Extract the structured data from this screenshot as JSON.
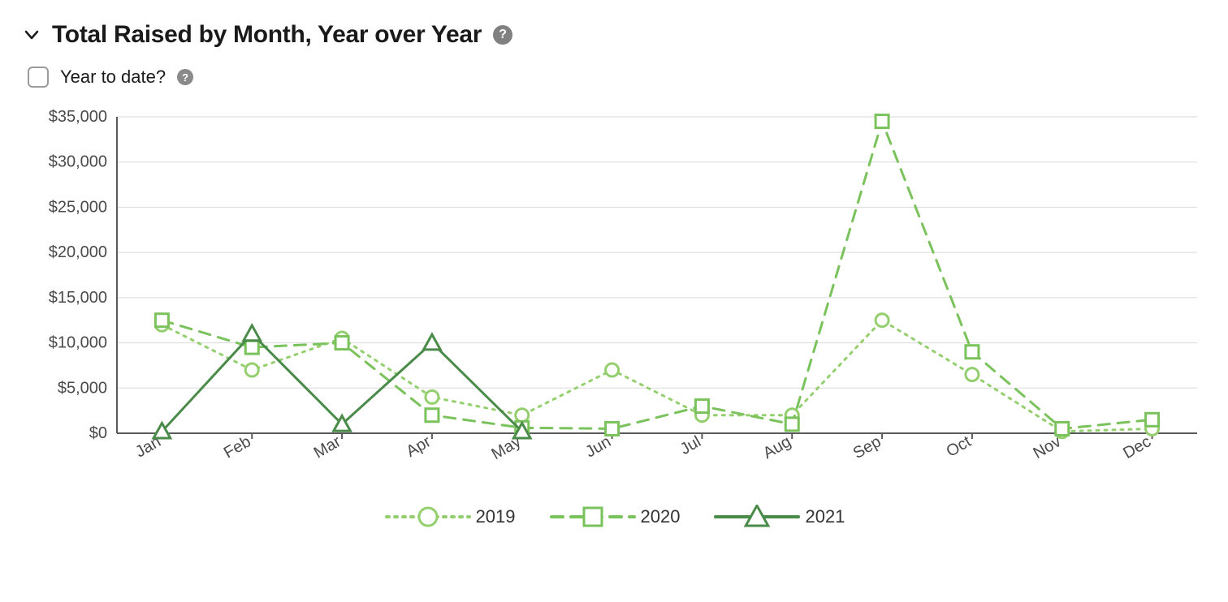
{
  "header": {
    "title": "Total Raised by Month, Year over Year"
  },
  "options": {
    "ytd_label": "Year to date?",
    "ytd_checked": false
  },
  "chart": {
    "type": "line",
    "background_color": "#ffffff",
    "grid_color": "#d9d9d9",
    "axis_color": "#5a5a5a",
    "font_size_ticks": 20,
    "font_size_legend": 22,
    "x": {
      "categories": [
        "Jan",
        "Feb",
        "Mar",
        "Apr",
        "May",
        "Jun",
        "Jul",
        "Aug",
        "Sep",
        "Oct",
        "Nov",
        "Dec"
      ]
    },
    "y": {
      "min": 0,
      "max": 35000,
      "tick_step": 5000,
      "tick_labels": [
        "$0",
        "$5,000",
        "$10,000",
        "$15,000",
        "$20,000",
        "$25,000",
        "$30,000",
        "$35,000"
      ]
    },
    "series": [
      {
        "name": "2019",
        "color": "#94cf6e",
        "line_width": 3,
        "dash": "dotted",
        "marker": "circle",
        "marker_size": 8,
        "values": [
          12000,
          7000,
          10500,
          4000,
          2000,
          7000,
          2000,
          2000,
          12500,
          6500,
          200,
          500
        ]
      },
      {
        "name": "2020",
        "color": "#7ac25b",
        "line_width": 3,
        "dash": "dashed",
        "marker": "square",
        "marker_size": 8,
        "values": [
          12500,
          9500,
          10000,
          2000,
          600,
          500,
          3000,
          1000,
          34500,
          9000,
          500,
          1500
        ]
      },
      {
        "name": "2021",
        "color": "#4a8b4a",
        "line_width": 3,
        "dash": "solid",
        "marker": "triangle",
        "marker_size": 9,
        "values": [
          200,
          11000,
          1000,
          10000,
          200,
          null,
          null,
          null,
          null,
          null,
          null,
          null
        ]
      }
    ]
  }
}
